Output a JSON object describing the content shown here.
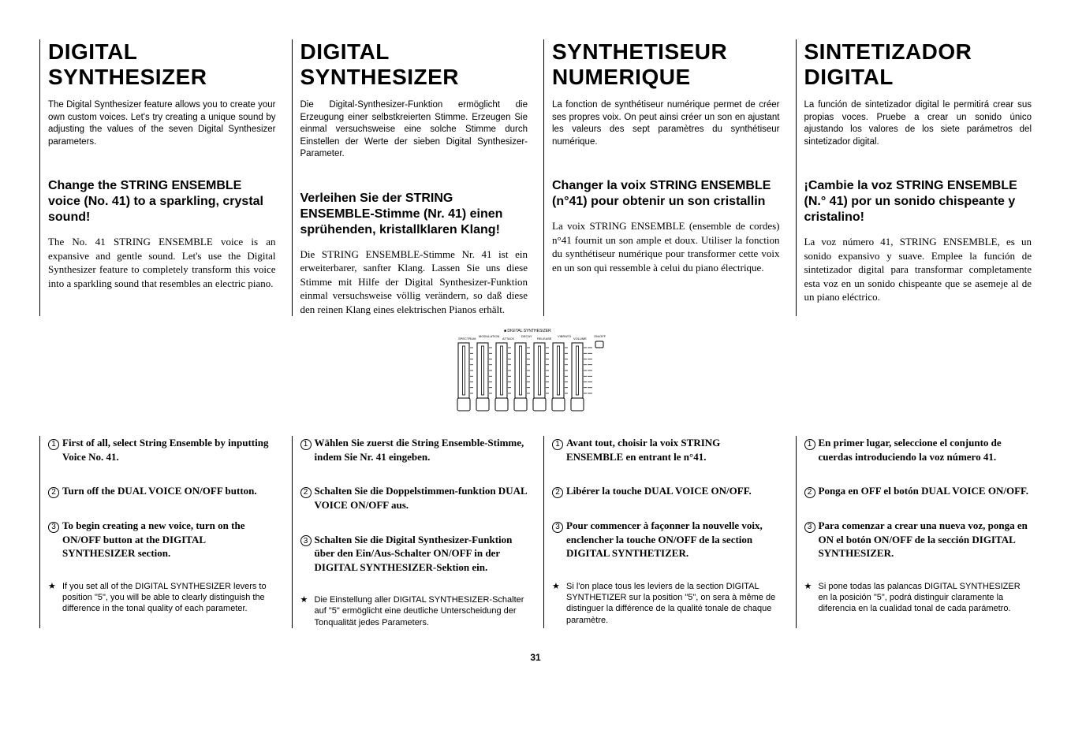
{
  "page_number": "31",
  "columns": {
    "en": {
      "title": "DIGITAL SYNTHESIZER",
      "intro": "The Digital Synthesizer feature allows you to create your own custom voices. Let's try creating a unique sound by adjusting the values of the seven Digital Synthesizer parameters.",
      "subtitle": "Change the STRING ENSEMBLE voice (No. 41) to a sparkling, crystal sound!",
      "body": "The No. 41 STRING ENSEMBLE voice is an expansive and gentle sound. Let's use the Digital Synthesizer feature to completely transform this voice into a sparkling sound that resembles an electric piano.",
      "step1": "First of all, select String Ensemble by inputting Voice No. 41.",
      "step2": "Turn off the DUAL VOICE ON/OFF button.",
      "step3": "To begin creating a new voice, turn on the ON/OFF button at the DIGITAL SYNTHESIZER section.",
      "note": "If you set all of the DIGITAL SYNTHESIZER levers to position \"5\", you will be able to clearly distinguish the difference in the tonal quality of each parameter."
    },
    "de": {
      "title": "DIGITAL SYNTHESIZER",
      "intro": "Die Digital-Synthesizer-Funktion ermöglicht die Erzeugung einer selbstkreierten Stimme. Erzeugen Sie einmal versuchsweise eine solche Stimme durch Einstellen der Werte der sieben Digital Synthesizer-Parameter.",
      "subtitle": "Verleihen Sie der STRING ENSEMBLE-Stimme (Nr. 41) einen sprühenden, kristallklaren Klang!",
      "body": "Die STRING ENSEMBLE-Stimme Nr. 41 ist ein erweiterbarer, sanfter Klang. Lassen Sie uns diese Stimme mit Hilfe der Digital Synthesizer-Funktion einmal versuchsweise völlig verändern, so daß diese den reinen Klang eines elektrischen Pianos erhält.",
      "step1": "Wählen Sie zuerst die String Ensemble-Stimme, indem Sie Nr. 41 eingeben.",
      "step2": "Schalten Sie die Doppelstimmen-funktion DUAL VOICE ON/OFF aus.",
      "step3": "Schalten Sie die Digital Synthesizer-Funktion über den Ein/Aus-Schalter ON/OFF in der DIGITAL SYNTHESIZER-Sektion ein.",
      "note": "Die Einstellung aller DIGITAL SYNTHESIZER-Schalter auf \"5\" ermöglicht eine deutliche Unterscheidung der Tonqualität jedes Parameters."
    },
    "fr": {
      "title": "SYNTHETISEUR NUMERIQUE",
      "intro": "La fonction de synthétiseur numérique permet de créer ses propres voix. On peut ainsi créer un son en ajustant les valeurs des sept paramètres du synthétiseur numérique.",
      "subtitle": "Changer la voix STRING ENSEMBLE (n°41) pour obtenir un son cristallin",
      "body": "La voix STRING ENSEMBLE (ensemble de cordes) n°41 fournit un son ample et doux. Utiliser la fonction du synthétiseur numérique pour transformer cette voix en un son qui ressemble à celui du piano électrique.",
      "step1": "Avant tout, choisir la voix STRING ENSEMBLE en entrant le n°41.",
      "step2": "Libérer la touche DUAL VOICE ON/OFF.",
      "step3": "Pour commencer à façonner la nouvelle voix, enclencher la touche ON/OFF de la section DIGITAL SYNTHETIZER.",
      "note": "Si l'on place tous les leviers de la section DIGITAL SYNTHETIZER sur la position \"5\", on sera à même de distinguer la différence de la qualité tonale de chaque paramètre."
    },
    "es": {
      "title": "SINTETIZADOR DIGITAL",
      "intro": "La función de sintetizador digital le permitirá crear sus propias voces. Pruebe a crear un sonido único ajustando los valores de los siete parámetros del sintetizador digital.",
      "subtitle": "¡Cambie la voz STRING ENSEMBLE (N.° 41) por un sonido chispeante y cristalino!",
      "body": "La voz número 41, STRING ENSEMBLE, es un sonido expansivo y suave. Emplee la función de sintetizador digital para transformar completamente esta voz en un sonido chispeante que se asemeje al de un piano eléctrico.",
      "step1": "En primer lugar, seleccione el conjunto de cuerdas introduciendo la voz número 41.",
      "step2": "Ponga en OFF el botón DUAL VOICE ON/OFF.",
      "step3": "Para comenzar a crear una nueva voz, ponga en ON el botón ON/OFF de la sección DIGITAL SYNTHESIZER.",
      "note": "Si pone todas las palancas DIGITAL SYNTHESIZER en la posición \"5\", podrá distinguir claramente la diferencia en la cualidad tonal de cada parámetro."
    }
  },
  "diagram": {
    "title": "DIGITAL SYNTHESIZER",
    "labels": [
      "SPECTRUM",
      "MODULATION",
      "ATTACK",
      "DECAY",
      "RELEASE",
      "VIBRATO",
      "VOLUME",
      "ON/OFF"
    ],
    "slider_count": 7,
    "scale_marks": 9,
    "colors": {
      "stroke": "#000000",
      "bg": "#ffffff"
    }
  }
}
